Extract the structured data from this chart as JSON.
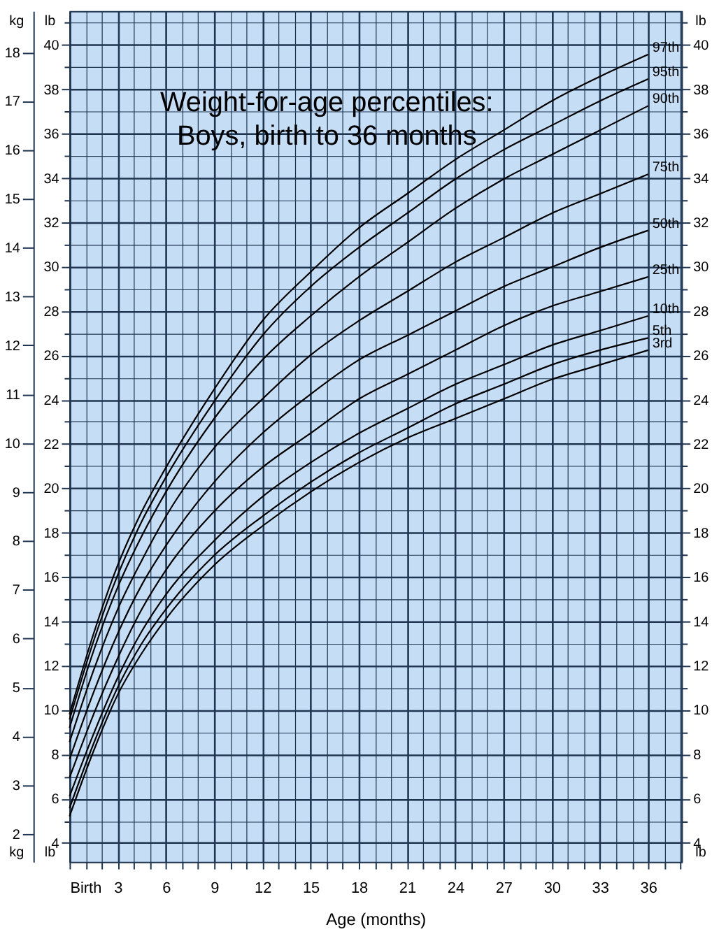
{
  "chart_data": {
    "type": "line",
    "title": [
      "Weight-for-age percentiles:",
      "Boys, birth to 36 months"
    ],
    "xlabel": "Age (months)",
    "ylabel": "kg",
    "y2label": "lb",
    "y3label": "lb",
    "x": [
      0,
      1.5,
      3,
      4.5,
      6,
      9,
      12,
      15,
      18,
      21,
      24,
      27,
      30,
      33,
      36
    ],
    "xlim": [
      0,
      38.07
    ],
    "xticks": [
      {
        "value": 0,
        "label": "Birth"
      },
      {
        "value": 1,
        "label": null
      },
      {
        "value": 2,
        "label": null
      },
      3,
      {
        "value": 4,
        "label": null
      },
      {
        "value": 5,
        "label": null
      },
      6,
      {
        "value": 7,
        "label": null
      },
      {
        "value": 8,
        "label": null
      },
      9,
      {
        "value": 10,
        "label": null
      },
      {
        "value": 11,
        "label": null
      },
      12,
      {
        "value": 13,
        "label": null
      },
      {
        "value": 14,
        "label": null
      },
      15,
      {
        "value": 16,
        "label": null
      },
      {
        "value": 17,
        "label": null
      },
      18,
      {
        "value": 19,
        "label": null
      },
      {
        "value": 20,
        "label": null
      },
      21,
      {
        "value": 22,
        "label": null
      },
      {
        "value": 23,
        "label": null
      },
      24,
      {
        "value": 25,
        "label": null
      },
      {
        "value": 26,
        "label": null
      },
      27,
      {
        "value": 28,
        "label": null
      },
      {
        "value": 29,
        "label": null
      },
      30,
      {
        "value": 31,
        "label": null
      },
      {
        "value": 32,
        "label": null
      },
      33,
      {
        "value": 34,
        "label": null
      },
      {
        "value": 35,
        "label": null
      },
      36,
      {
        "value": 37,
        "label": null
      },
      {
        "value": 38,
        "label": null
      }
    ],
    "ylim": [
      1.43,
      18.84
    ],
    "yticks": [
      2,
      3,
      4,
      5,
      6,
      7,
      8,
      9,
      10,
      11,
      12,
      13,
      14,
      15,
      16,
      17,
      18
    ],
    "y2lim": [
      3.15,
      41.53
    ],
    "y2ticks": [
      4,
      {
        "value": 5,
        "label": null
      },
      6,
      {
        "value": 7,
        "label": null
      },
      8,
      {
        "value": 9,
        "label": null
      },
      10,
      {
        "value": 11,
        "label": null
      },
      12,
      {
        "value": 13,
        "label": null
      },
      14,
      {
        "value": 15,
        "label": null
      },
      16,
      {
        "value": 17,
        "label": null
      },
      18,
      {
        "value": 19,
        "label": null
      },
      20,
      {
        "value": 21,
        "label": null
      },
      22,
      {
        "value": 23,
        "label": null
      },
      24,
      {
        "value": 25,
        "label": null
      },
      26,
      {
        "value": 27,
        "label": null
      },
      28,
      {
        "value": 29,
        "label": null
      },
      30,
      {
        "value": 31,
        "label": null
      },
      32,
      {
        "value": 33,
        "label": null
      },
      34,
      {
        "value": 35,
        "label": null
      },
      36,
      {
        "value": 37,
        "label": null
      },
      38,
      {
        "value": 39,
        "label": null
      },
      40,
      {
        "value": 41,
        "label": null
      }
    ],
    "y3lim": [
      3.15,
      41.53
    ],
    "y3ticks": [
      4,
      {
        "value": 5,
        "label": null
      },
      6,
      {
        "value": 7,
        "label": null
      },
      8,
      {
        "value": 9,
        "label": null
      },
      10,
      {
        "value": 11,
        "label": null
      },
      12,
      {
        "value": 13,
        "label": null
      },
      14,
      {
        "value": 15,
        "label": null
      },
      16,
      {
        "value": 17,
        "label": null
      },
      18,
      {
        "value": 19,
        "label": null
      },
      20,
      {
        "value": 21,
        "label": null
      },
      22,
      {
        "value": 23,
        "label": null
      },
      24,
      {
        "value": 25,
        "label": null
      },
      26,
      {
        "value": 27,
        "label": null
      },
      28,
      {
        "value": 29,
        "label": null
      },
      30,
      {
        "value": 31,
        "label": null
      },
      32,
      {
        "value": 33,
        "label": null
      },
      34,
      {
        "value": 35,
        "label": null
      },
      36,
      {
        "value": 37,
        "label": null
      },
      38,
      {
        "value": 39,
        "label": null
      },
      40,
      {
        "value": 41,
        "label": null
      }
    ],
    "grid": true,
    "legend": false,
    "marker": "none",
    "line_style": "solid",
    "series": [
      {
        "name": "97th",
        "color": "#000000",
        "values": [
          4.45,
          6.1,
          7.5,
          8.6,
          9.5,
          11.1,
          12.5,
          13.5,
          14.4,
          15.1,
          15.8,
          16.4,
          17.0,
          17.5,
          17.95
        ]
      },
      {
        "name": "95th",
        "color": "#000000",
        "values": [
          4.34,
          5.95,
          7.3,
          8.4,
          9.3,
          10.85,
          12.2,
          13.2,
          14.0,
          14.7,
          15.4,
          16.0,
          16.5,
          17.0,
          17.45
        ]
      },
      {
        "name": "90th",
        "color": "#000000",
        "values": [
          4.17,
          5.75,
          7.05,
          8.1,
          9.0,
          10.5,
          11.7,
          12.6,
          13.4,
          14.1,
          14.8,
          15.4,
          15.9,
          16.4,
          16.9
        ]
      },
      {
        "name": "75th",
        "color": "#000000",
        "values": [
          3.88,
          5.35,
          6.6,
          7.6,
          8.5,
          9.9,
          10.9,
          11.8,
          12.5,
          13.1,
          13.7,
          14.2,
          14.7,
          15.1,
          15.5
        ]
      },
      {
        "name": "50th",
        "color": "#000000",
        "values": [
          3.53,
          4.9,
          6.1,
          7.1,
          7.9,
          9.2,
          10.2,
          11.0,
          11.7,
          12.2,
          12.7,
          13.2,
          13.6,
          14.0,
          14.35
        ]
      },
      {
        "name": "25th",
        "color": "#000000",
        "values": [
          3.15,
          4.45,
          5.6,
          6.6,
          7.4,
          8.6,
          9.5,
          10.2,
          10.9,
          11.4,
          11.9,
          12.4,
          12.8,
          13.1,
          13.4
        ]
      },
      {
        "name": "10th",
        "color": "#000000",
        "values": [
          2.77,
          4.05,
          5.2,
          6.15,
          6.9,
          8.0,
          8.9,
          9.6,
          10.2,
          10.7,
          11.2,
          11.6,
          12.0,
          12.3,
          12.6
        ]
      },
      {
        "name": "5th",
        "color": "#000000",
        "values": [
          2.53,
          3.85,
          5.0,
          5.9,
          6.6,
          7.7,
          8.5,
          9.2,
          9.8,
          10.3,
          10.8,
          11.2,
          11.6,
          11.9,
          12.15
        ]
      },
      {
        "name": "3rd",
        "color": "#000000",
        "values": [
          2.36,
          3.7,
          4.85,
          5.7,
          6.4,
          7.5,
          8.3,
          9.0,
          9.6,
          10.1,
          10.5,
          10.9,
          11.3,
          11.6,
          11.9
        ]
      }
    ]
  }
}
